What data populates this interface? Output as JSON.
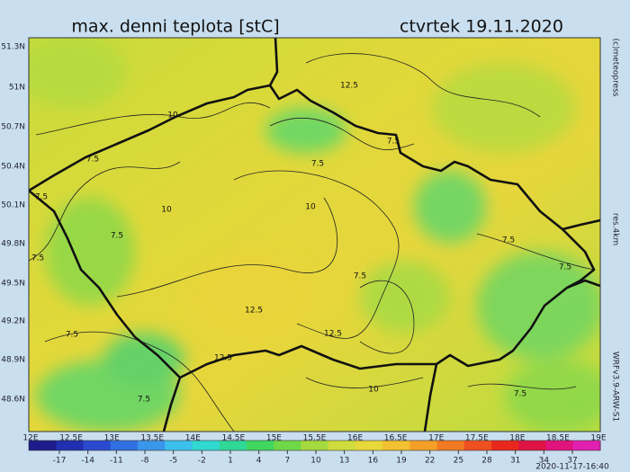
{
  "header": {
    "title": "max. denni teplota [stC]",
    "date": "ctvrtek 19.11.2020"
  },
  "map": {
    "lat_labels": [
      "51.3N",
      "51N",
      "50.7N",
      "50.4N",
      "50.1N",
      "49.8N",
      "49.5N",
      "49.2N",
      "48.9N",
      "48.6N"
    ],
    "lon_labels": [
      "12E",
      "12.5E",
      "13E",
      "13.5E",
      "14E",
      "14.5E",
      "15E",
      "15.5E",
      "16E",
      "16.5E",
      "17E",
      "17.5E",
      "18E",
      "18.5E",
      "19E"
    ],
    "contour_labels": [
      "12.5",
      "10",
      "7.5",
      "7.5",
      "7.5",
      "7.5",
      "10",
      "10",
      "7.5",
      "7.5",
      "7.5",
      "7.5",
      "7.5",
      "12.5",
      "12.5",
      "7.5",
      "12.5",
      "10",
      "7.5",
      "7.5"
    ]
  },
  "colorbar": {
    "ticks": [
      -17,
      -14,
      -11,
      -8,
      -5,
      -2,
      1,
      4,
      7,
      10,
      13,
      16,
      19,
      22,
      25,
      28,
      31,
      34,
      37
    ]
  },
  "side": {
    "copyright": "(c)meteopress",
    "resolution": "res.4km",
    "model": "WRFv3.9-ARW-S1"
  },
  "footer": {
    "timestamp": "2020-11-17-16:40"
  }
}
